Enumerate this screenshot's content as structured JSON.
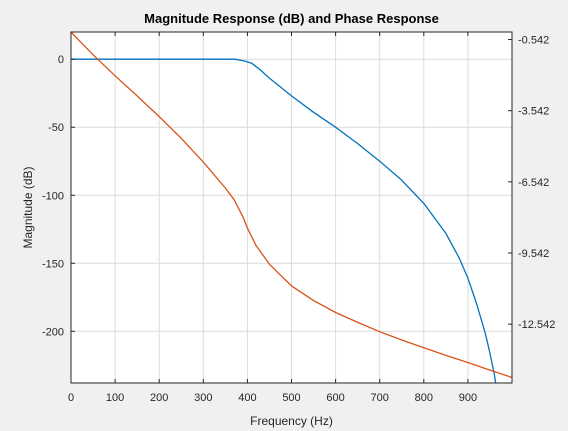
{
  "chart_data": {
    "type": "line",
    "title": "Magnitude Response (dB) and Phase Response",
    "xlabel": "Frequency (Hz)",
    "ylabel": "Magnitude (dB)",
    "ylabel_right": "",
    "xlim": [
      0,
      1000
    ],
    "ylim_left": [
      -238,
      20
    ],
    "ylim_right": [
      -15.023,
      -0.224
    ],
    "x_ticks": [
      0,
      100,
      200,
      300,
      400,
      500,
      600,
      700,
      800,
      900
    ],
    "y_ticks_left": [
      0,
      -50,
      -100,
      -150,
      -200
    ],
    "y_ticks_right": [
      -0.542,
      -3.542,
      -6.542,
      -9.542,
      -12.542
    ],
    "grid": true,
    "colors": {
      "magnitude": "#0072bd",
      "phase": "#d95319",
      "grid": "#dcdcdc",
      "axes": "#262626",
      "plot_bg": "#ffffff",
      "figure_bg": "#f0f0f0"
    },
    "series": [
      {
        "axis": "left",
        "x": [
          0,
          100,
          200,
          300,
          350,
          370,
          390,
          410,
          430,
          450,
          500,
          550,
          600,
          650,
          700,
          750,
          800,
          850,
          880,
          900,
          920,
          940,
          950,
          960,
          963
        ],
        "values": [
          0,
          0,
          0,
          0,
          0,
          0,
          -1,
          -3,
          -8,
          -14,
          -27,
          -39,
          -50,
          -62,
          -75,
          -89,
          -106,
          -128,
          -146,
          -161,
          -180,
          -202,
          -216,
          -232,
          -238
        ]
      },
      {
        "axis": "right",
        "x": [
          0,
          20,
          50,
          100,
          150,
          200,
          250,
          300,
          350,
          370,
          390,
          400,
          420,
          450,
          500,
          550,
          600,
          650,
          700,
          750,
          800,
          850,
          900,
          950,
          1000
        ],
        "values": [
          -0.224,
          -0.61,
          -1.18,
          -2.07,
          -2.92,
          -3.79,
          -4.71,
          -5.71,
          -6.8,
          -7.3,
          -8.02,
          -8.49,
          -9.24,
          -10.02,
          -10.93,
          -11.55,
          -12.05,
          -12.47,
          -12.86,
          -13.21,
          -13.54,
          -13.86,
          -14.16,
          -14.48,
          -14.79
        ]
      }
    ]
  }
}
